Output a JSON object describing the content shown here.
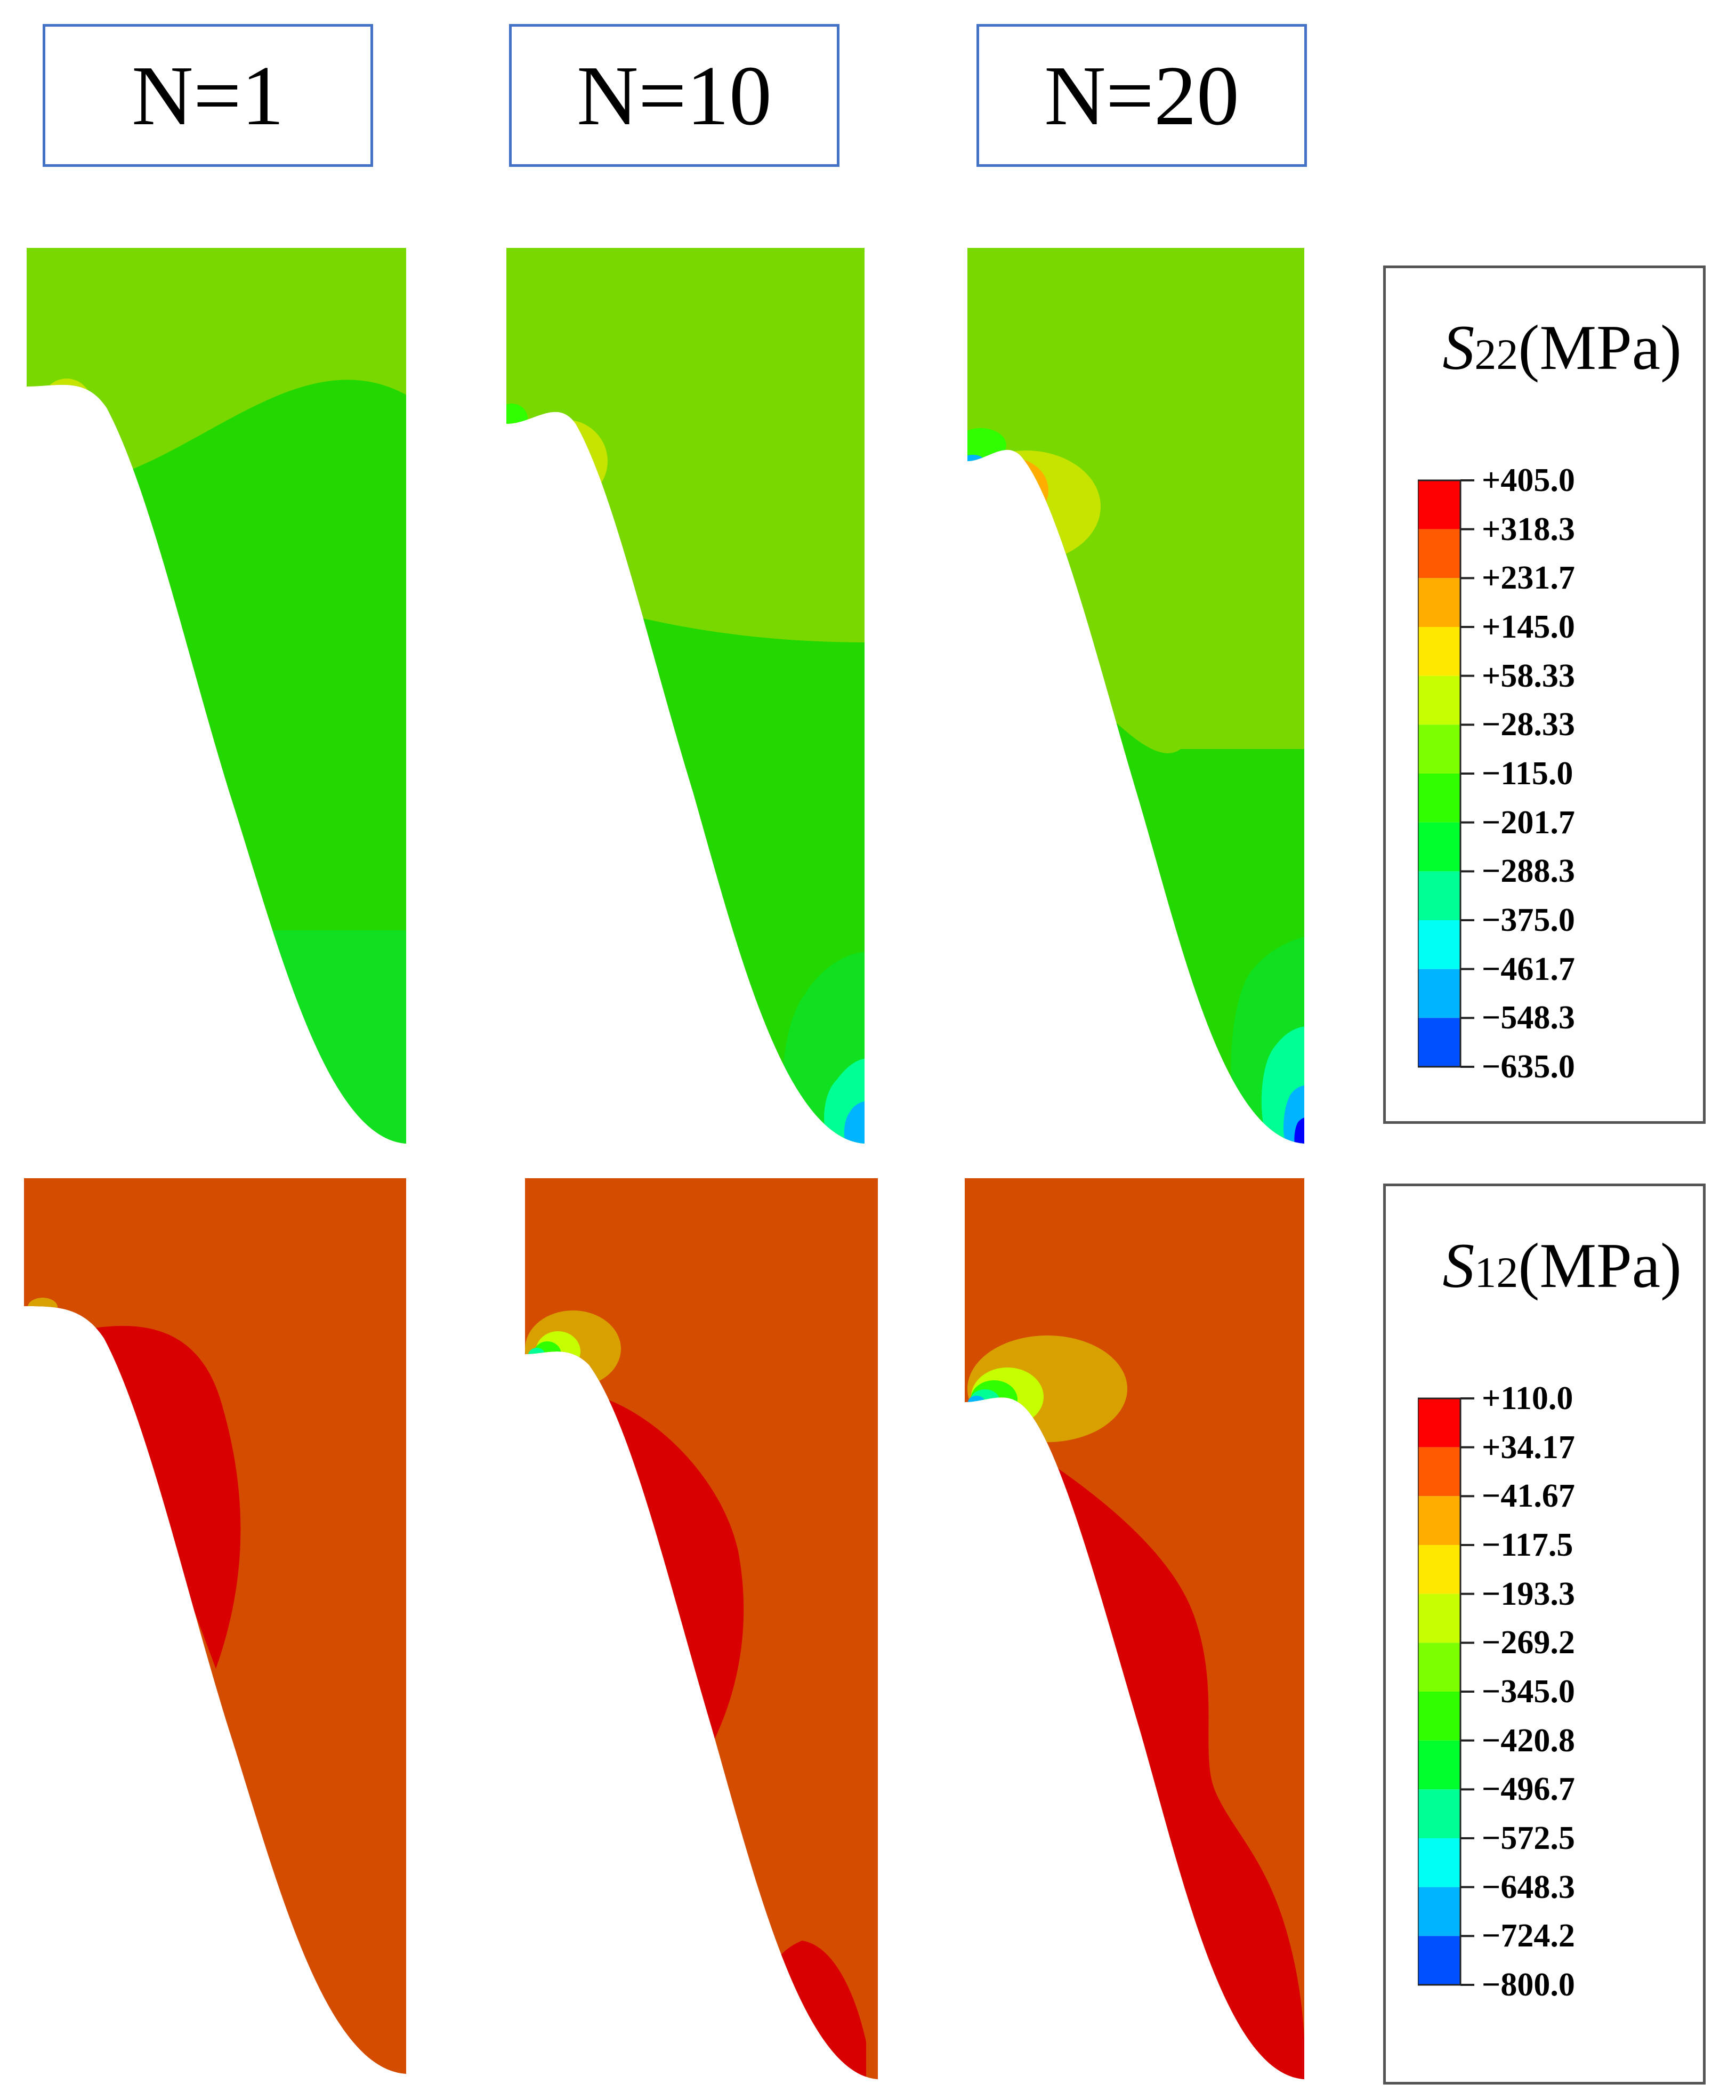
{
  "headers": [
    {
      "label": "N=1"
    },
    {
      "label": "N=10"
    },
    {
      "label": "N=20"
    }
  ],
  "legends": [
    {
      "symbol": "S",
      "subscript": "22",
      "unit": "(MPa)",
      "labels": [
        "+405.0",
        "+318.3",
        "+231.7",
        "+145.0",
        "+58.33",
        "−28.33",
        "−115.0",
        "−201.7",
        "−288.3",
        "−375.0",
        "−461.7",
        "−548.3",
        "−635.0"
      ]
    },
    {
      "symbol": "S",
      "subscript": "12",
      "unit": "(MPa)",
      "labels": [
        "+110.0",
        "+34.17",
        "−41.67",
        "−117.5",
        "−193.3",
        "−269.2",
        "−345.0",
        "−420.8",
        "−496.7",
        "−572.5",
        "−648.3",
        "−724.2",
        "−800.0"
      ]
    }
  ],
  "colors": {
    "scale": [
      "#ff0000",
      "#ff5a00",
      "#ffae00",
      "#ffe800",
      "#c6ff00",
      "#7cff00",
      "#30ff00",
      "#00ff2c",
      "#00ff94",
      "#00fff4",
      "#00b4ff",
      "#0050ff",
      "#0000ff"
    ],
    "s22_base": "#78d800",
    "s22_mid": "#22d800",
    "s22_low": "#10e020",
    "s12_base": "#d44c00",
    "s12_red": "#d80000",
    "s12_orange": "#d8a000",
    "frame": "#4472c4"
  }
}
